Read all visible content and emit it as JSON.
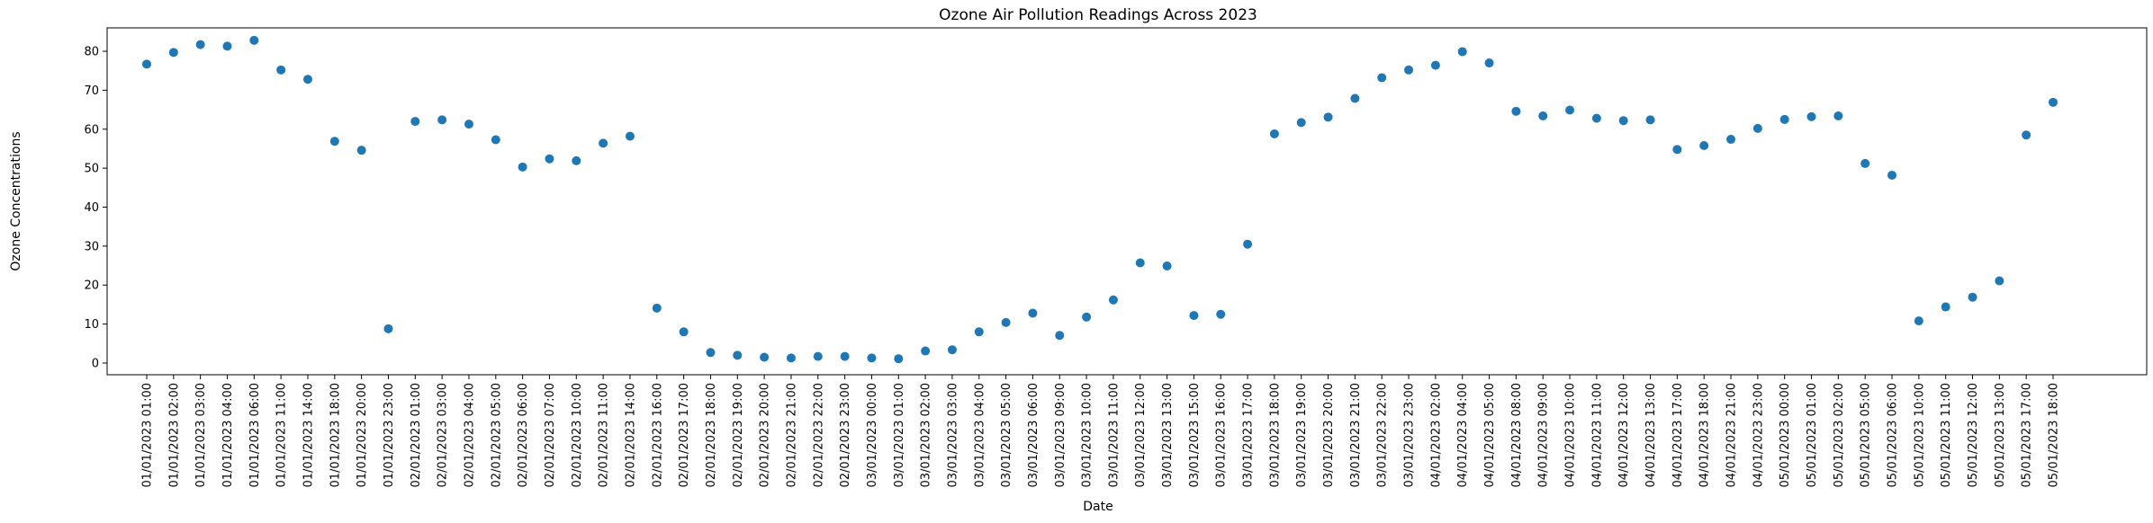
{
  "chart_data": {
    "type": "scatter",
    "title": "Ozone Air Pollution Readings Across 2023",
    "xlabel": "Date",
    "ylabel": "Ozone Concentrations",
    "ylim": [
      -3,
      86
    ],
    "yticks": [
      0,
      10,
      20,
      30,
      40,
      50,
      60,
      70,
      80
    ],
    "grid": false,
    "marker_color": "#1f77b4",
    "categories": [
      "01/01/2023 01:00",
      "01/01/2023 02:00",
      "01/01/2023 03:00",
      "01/01/2023 04:00",
      "01/01/2023 06:00",
      "01/01/2023 11:00",
      "01/01/2023 14:00",
      "01/01/2023 18:00",
      "01/01/2023 20:00",
      "01/01/2023 23:00",
      "02/01/2023 01:00",
      "02/01/2023 03:00",
      "02/01/2023 04:00",
      "02/01/2023 05:00",
      "02/01/2023 06:00",
      "02/01/2023 07:00",
      "02/01/2023 10:00",
      "02/01/2023 11:00",
      "02/01/2023 14:00",
      "02/01/2023 16:00",
      "02/01/2023 17:00",
      "02/01/2023 18:00",
      "02/01/2023 19:00",
      "02/01/2023 20:00",
      "02/01/2023 21:00",
      "02/01/2023 22:00",
      "02/01/2023 23:00",
      "03/01/2023 00:00",
      "03/01/2023 01:00",
      "03/01/2023 02:00",
      "03/01/2023 03:00",
      "03/01/2023 04:00",
      "03/01/2023 05:00",
      "03/01/2023 06:00",
      "03/01/2023 09:00",
      "03/01/2023 10:00",
      "03/01/2023 11:00",
      "03/01/2023 12:00",
      "03/01/2023 13:00",
      "03/01/2023 15:00",
      "03/01/2023 16:00",
      "03/01/2023 17:00",
      "03/01/2023 18:00",
      "03/01/2023 19:00",
      "03/01/2023 20:00",
      "03/01/2023 21:00",
      "03/01/2023 22:00",
      "03/01/2023 23:00",
      "04/01/2023 02:00",
      "04/01/2023 04:00",
      "04/01/2023 05:00",
      "04/01/2023 08:00",
      "04/01/2023 09:00",
      "04/01/2023 10:00",
      "04/01/2023 11:00",
      "04/01/2023 12:00",
      "04/01/2023 13:00",
      "04/01/2023 17:00",
      "04/01/2023 18:00",
      "04/01/2023 21:00",
      "04/01/2023 23:00",
      "05/01/2023 00:00",
      "05/01/2023 01:00",
      "05/01/2023 02:00",
      "05/01/2023 05:00",
      "05/01/2023 06:00",
      "05/01/2023 10:00",
      "05/01/2023 11:00",
      "05/01/2023 12:00",
      "05/01/2023 13:00",
      "05/01/2023 17:00",
      "05/01/2023 18:00"
    ],
    "series": [
      {
        "values": [
          76.7,
          79.7,
          81.7,
          81.3,
          82.8,
          75.2,
          72.8,
          56.9,
          54.6,
          8.8,
          62.0,
          62.4,
          61.3,
          57.3,
          50.3,
          52.4,
          51.9,
          56.4,
          58.2,
          14.1,
          8.0,
          2.7,
          2.0,
          1.5,
          1.3,
          1.7,
          1.7,
          1.3,
          1.1,
          3.1,
          3.4,
          8.0,
          10.4,
          12.8,
          7.1,
          11.8,
          16.2,
          25.7,
          24.9,
          12.2,
          12.5,
          30.5,
          58.8,
          61.7,
          63.1,
          67.9,
          73.2,
          75.2,
          76.4,
          79.9,
          77.0,
          64.6,
          63.4,
          64.9,
          62.8,
          62.2,
          62.4,
          54.8,
          55.8,
          57.4,
          60.2,
          62.5,
          63.2,
          63.4,
          51.2,
          48.2,
          10.8,
          14.4,
          16.9,
          21.1,
          58.5,
          66.9
        ]
      }
    ]
  }
}
